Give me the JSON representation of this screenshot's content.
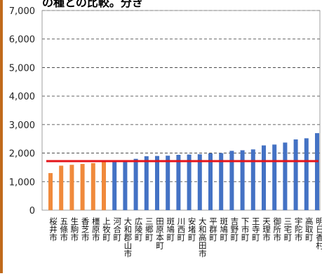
{
  "header": {
    "partial_title": "の種との比較。分き"
  },
  "chart_data": {
    "type": "bar",
    "title": "",
    "xlabel": "",
    "ylabel": "",
    "ylim": [
      0,
      7000
    ],
    "yticks": [
      0,
      1000,
      2000,
      3000,
      4000,
      5000,
      6000,
      7000
    ],
    "ytick_labels": [
      "0",
      "1,000",
      "2,000",
      "3,000",
      "4,000",
      "5,000",
      "6,000",
      "7,000"
    ],
    "grid": "horizontal-dashed",
    "reference_line": {
      "value": 1720,
      "color": "#e4141a"
    },
    "colors": {
      "highlight": "#f08a3c",
      "default": "#4472c4"
    },
    "categories": [
      "桜井市",
      "五條市",
      "生駒市",
      "香芝市",
      "橿原市",
      "上牧町",
      "河合町",
      "大和郡山市",
      "広陵町",
      "三郷町",
      "田原本町",
      "斑鳩町",
      "川西町",
      "安堵町",
      "大和高田市",
      "平群町",
      "斑鳩町",
      "吉野町",
      "下市町",
      "王寺町",
      "天理市",
      "御所市",
      "三宅町",
      "宇陀市",
      "高取町",
      "明日香村"
    ],
    "values": [
      1300,
      1560,
      1590,
      1620,
      1650,
      1700,
      1700,
      1720,
      1800,
      1890,
      1900,
      1910,
      1940,
      1950,
      1960,
      1990,
      2000,
      2080,
      2100,
      2130,
      2270,
      2300,
      2370,
      2480,
      2520,
      2700
    ],
    "highlight_count": 6
  }
}
